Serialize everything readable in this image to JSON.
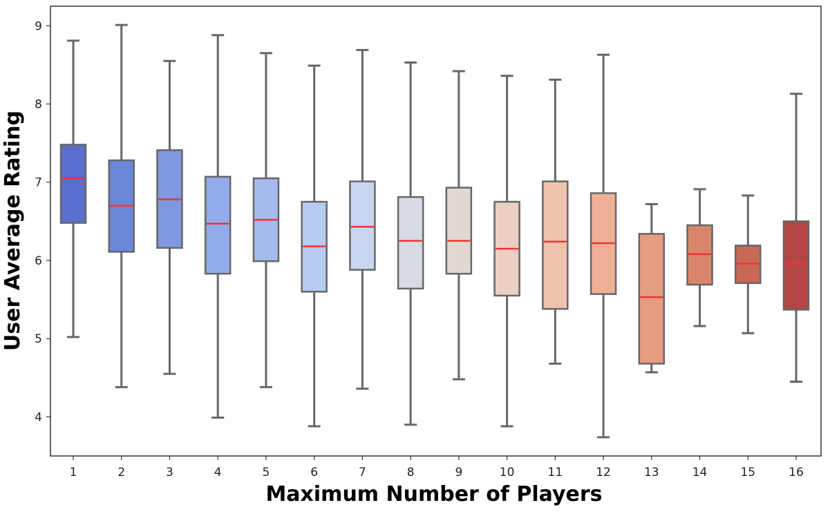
{
  "chart_data": {
    "type": "box",
    "title": "",
    "xlabel": "Maximum Number of Players",
    "ylabel": "User Average Rating",
    "ylim": [
      3.5,
      9.25
    ],
    "yticks": [
      4,
      5,
      6,
      7,
      8,
      9
    ],
    "categories": [
      "1",
      "2",
      "3",
      "4",
      "5",
      "6",
      "7",
      "8",
      "9",
      "10",
      "11",
      "12",
      "13",
      "14",
      "15",
      "16"
    ],
    "boxes": [
      {
        "whisker_low": 5.02,
        "q1": 6.48,
        "median": 7.05,
        "q3": 7.48,
        "whisker_high": 8.81,
        "color": "#5a6fcf"
      },
      {
        "whisker_low": 4.38,
        "q1": 6.11,
        "median": 6.7,
        "q3": 7.28,
        "whisker_high": 9.01,
        "color": "#6c87da"
      },
      {
        "whisker_low": 4.55,
        "q1": 6.16,
        "median": 6.78,
        "q3": 7.41,
        "whisker_high": 8.55,
        "color": "#7f98e2"
      },
      {
        "whisker_low": 3.99,
        "q1": 5.83,
        "median": 6.47,
        "q3": 7.07,
        "whisker_high": 8.88,
        "color": "#92abea"
      },
      {
        "whisker_low": 4.38,
        "q1": 5.99,
        "median": 6.52,
        "q3": 7.05,
        "whisker_high": 8.65,
        "color": "#a5bbf0"
      },
      {
        "whisker_low": 3.88,
        "q1": 5.6,
        "median": 6.18,
        "q3": 6.75,
        "whisker_high": 8.49,
        "color": "#b7cbf3"
      },
      {
        "whisker_low": 4.36,
        "q1": 5.88,
        "median": 6.43,
        "q3": 7.01,
        "whisker_high": 8.69,
        "color": "#c9d5f1"
      },
      {
        "whisker_low": 3.9,
        "q1": 5.64,
        "median": 6.25,
        "q3": 6.81,
        "whisker_high": 8.53,
        "color": "#d6dbe4"
      },
      {
        "whisker_low": 4.48,
        "q1": 5.83,
        "median": 6.25,
        "q3": 6.93,
        "whisker_high": 8.42,
        "color": "#e2d8d2"
      },
      {
        "whisker_low": 3.88,
        "q1": 5.55,
        "median": 6.15,
        "q3": 6.75,
        "whisker_high": 8.36,
        "color": "#ebcfc2"
      },
      {
        "whisker_low": 4.68,
        "q1": 5.38,
        "median": 6.24,
        "q3": 7.01,
        "whisker_high": 8.31,
        "color": "#f0c2ad"
      },
      {
        "whisker_low": 3.74,
        "q1": 5.57,
        "median": 6.22,
        "q3": 6.86,
        "whisker_high": 8.63,
        "color": "#eeb096"
      },
      {
        "whisker_low": 4.57,
        "q1": 4.68,
        "median": 5.53,
        "q3": 6.34,
        "whisker_high": 6.72,
        "color": "#e59c80"
      },
      {
        "whisker_low": 5.16,
        "q1": 5.69,
        "median": 6.08,
        "q3": 6.45,
        "whisker_high": 6.91,
        "color": "#d9856b"
      },
      {
        "whisker_low": 5.07,
        "q1": 5.71,
        "median": 5.96,
        "q3": 6.19,
        "whisker_high": 6.83,
        "color": "#c96857"
      },
      {
        "whisker_low": 4.45,
        "q1": 5.37,
        "median": 5.96,
        "q3": 6.5,
        "whisker_high": 8.13,
        "color": "#b64545"
      }
    ],
    "box_edge_color": "#666666",
    "median_color": "#ee3333",
    "grid": false,
    "legend": "none"
  }
}
